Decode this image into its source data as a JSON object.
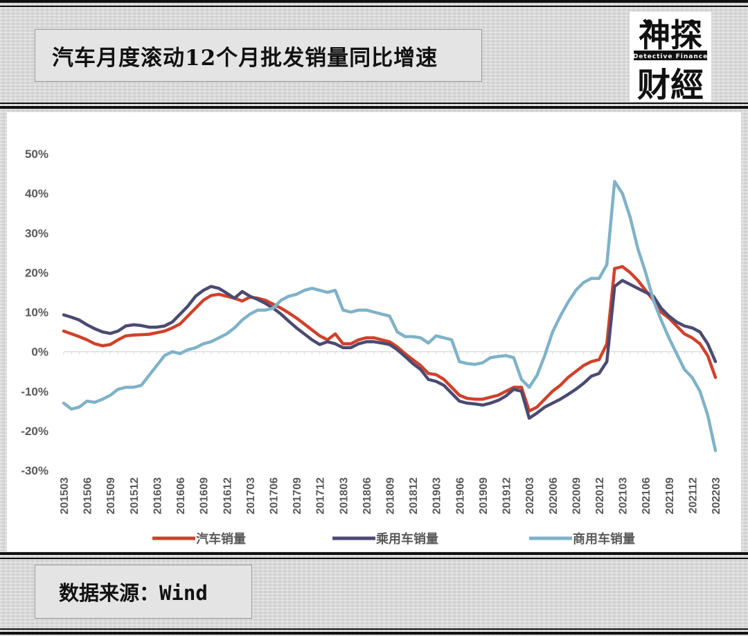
{
  "header": {
    "title": "汽车月度滚动12个月批发销量同比增速"
  },
  "logo": {
    "text_top": "神探",
    "text_mid": "Detective Finance",
    "text_bottom": "财經"
  },
  "source": {
    "text": "数据来源：Wind"
  },
  "colors": {
    "auto": "#d0412b",
    "passenger": "#4a4a72",
    "commercial": "#7fb2c8"
  },
  "chart_data": {
    "type": "line",
    "title": "",
    "xlabel": "",
    "ylabel": "",
    "ylim": [
      -0.3,
      0.5
    ],
    "y_ticks": [
      0.5,
      0.4,
      0.3,
      0.2,
      0.1,
      0,
      -0.1,
      -0.2,
      -0.3
    ],
    "y_tick_labels": [
      "50%",
      "40%",
      "30%",
      "20%",
      "10%",
      "0%",
      "-10%",
      "-20%",
      "-30%"
    ],
    "grid": false,
    "legend_position": "bottom",
    "x_start": "201503",
    "x_tick_labels": [
      "201503",
      "201506",
      "201509",
      "201512",
      "201603",
      "201606",
      "201609",
      "201612",
      "201703",
      "201706",
      "201709",
      "201712",
      "201803",
      "201806",
      "201809",
      "201812",
      "201903",
      "201906",
      "201909",
      "201912",
      "202003",
      "202006",
      "202009",
      "202012",
      "202103",
      "202106",
      "202109",
      "202112",
      "202203"
    ],
    "series": [
      {
        "name": "汽车销量",
        "values": [
          0.052,
          0.045,
          0.038,
          0.03,
          0.02,
          0.015,
          0.018,
          0.03,
          0.04,
          0.042,
          0.043,
          0.044,
          0.048,
          0.052,
          0.06,
          0.07,
          0.09,
          0.11,
          0.13,
          0.142,
          0.145,
          0.14,
          0.135,
          0.128,
          0.138,
          0.135,
          0.13,
          0.12,
          0.11,
          0.098,
          0.085,
          0.07,
          0.055,
          0.04,
          0.03,
          0.045,
          0.02,
          0.02,
          0.03,
          0.035,
          0.035,
          0.03,
          0.025,
          0.012,
          -0.005,
          -0.02,
          -0.035,
          -0.055,
          -0.058,
          -0.07,
          -0.09,
          -0.11,
          -0.118,
          -0.12,
          -0.12,
          -0.115,
          -0.11,
          -0.1,
          -0.09,
          -0.09,
          -0.15,
          -0.14,
          -0.12,
          -0.1,
          -0.085,
          -0.065,
          -0.05,
          -0.035,
          -0.025,
          -0.02,
          0.02,
          0.21,
          0.215,
          0.2,
          0.18,
          0.155,
          0.13,
          0.1,
          0.085,
          0.065,
          0.045,
          0.035,
          0.02,
          -0.01,
          -0.065
        ]
      },
      {
        "name": "乘用车销量",
        "values": [
          0.093,
          0.087,
          0.08,
          0.068,
          0.058,
          0.05,
          0.046,
          0.052,
          0.065,
          0.068,
          0.066,
          0.062,
          0.062,
          0.065,
          0.075,
          0.095,
          0.115,
          0.14,
          0.155,
          0.165,
          0.16,
          0.148,
          0.135,
          0.152,
          0.14,
          0.132,
          0.122,
          0.11,
          0.095,
          0.077,
          0.06,
          0.045,
          0.03,
          0.018,
          0.025,
          0.02,
          0.01,
          0.01,
          0.02,
          0.025,
          0.025,
          0.022,
          0.018,
          0.005,
          -0.012,
          -0.03,
          -0.045,
          -0.07,
          -0.075,
          -0.085,
          -0.105,
          -0.125,
          -0.13,
          -0.132,
          -0.135,
          -0.13,
          -0.123,
          -0.112,
          -0.095,
          -0.1,
          -0.168,
          -0.155,
          -0.14,
          -0.13,
          -0.12,
          -0.108,
          -0.095,
          -0.08,
          -0.062,
          -0.055,
          -0.025,
          0.165,
          0.18,
          0.17,
          0.16,
          0.15,
          0.14,
          0.11,
          0.09,
          0.075,
          0.065,
          0.06,
          0.05,
          0.02,
          -0.025
        ]
      },
      {
        "name": "商用车销量",
        "values": [
          -0.13,
          -0.145,
          -0.14,
          -0.125,
          -0.128,
          -0.12,
          -0.11,
          -0.095,
          -0.09,
          -0.09,
          -0.085,
          -0.06,
          -0.035,
          -0.01,
          0.0,
          -0.005,
          0.005,
          0.01,
          0.02,
          0.025,
          0.035,
          0.045,
          0.06,
          0.08,
          0.095,
          0.105,
          0.105,
          0.11,
          0.13,
          0.14,
          0.145,
          0.155,
          0.16,
          0.155,
          0.15,
          0.155,
          0.105,
          0.1,
          0.105,
          0.105,
          0.1,
          0.095,
          0.09,
          0.05,
          0.038,
          0.038,
          0.035,
          0.022,
          0.04,
          0.035,
          0.03,
          -0.025,
          -0.03,
          -0.032,
          -0.028,
          -0.015,
          -0.012,
          -0.01,
          -0.015,
          -0.07,
          -0.09,
          -0.06,
          -0.01,
          0.05,
          0.09,
          0.125,
          0.155,
          0.175,
          0.185,
          0.185,
          0.22,
          0.43,
          0.4,
          0.34,
          0.26,
          0.2,
          0.13,
          0.08,
          0.035,
          -0.005,
          -0.045,
          -0.065,
          -0.1,
          -0.16,
          -0.25
        ]
      }
    ]
  }
}
